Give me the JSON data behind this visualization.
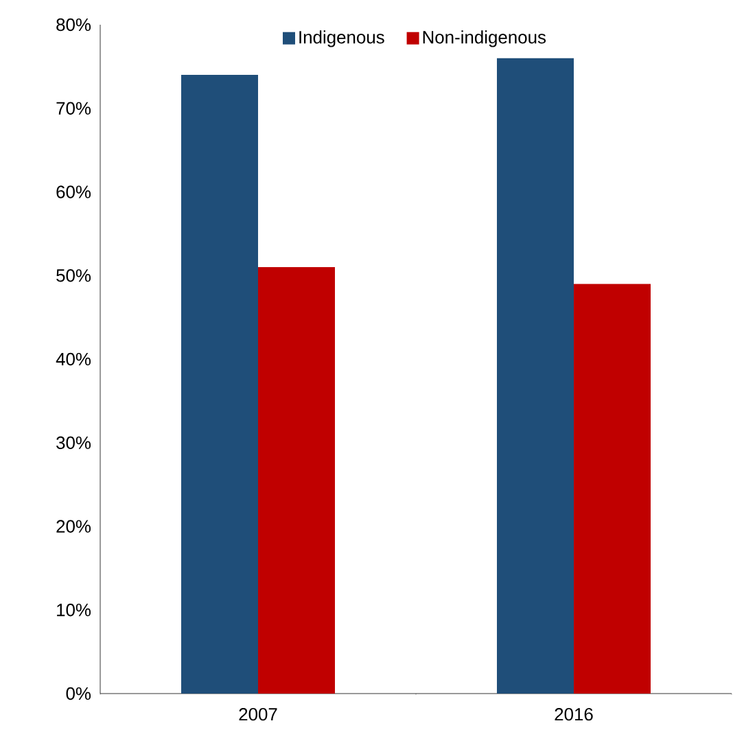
{
  "chart_data": {
    "type": "bar",
    "categories": [
      "2007",
      "2016"
    ],
    "series": [
      {
        "name": "Indigenous",
        "color": "#1f4e79",
        "values": [
          74,
          76
        ]
      },
      {
        "name": "Non-indigenous",
        "color": "#c00000",
        "values": [
          51,
          49
        ]
      }
    ],
    "ylim": [
      0,
      80
    ],
    "yticks": [
      {
        "value": 0,
        "label": "0%"
      },
      {
        "value": 10,
        "label": "10%"
      },
      {
        "value": 20,
        "label": "20%"
      },
      {
        "value": 30,
        "label": "30%"
      },
      {
        "value": 40,
        "label": "40%"
      },
      {
        "value": 50,
        "label": "50%"
      },
      {
        "value": 60,
        "label": "60%"
      },
      {
        "value": 70,
        "label": "70%"
      },
      {
        "value": 80,
        "label": "80%"
      }
    ],
    "grid": false,
    "legend": "top"
  }
}
